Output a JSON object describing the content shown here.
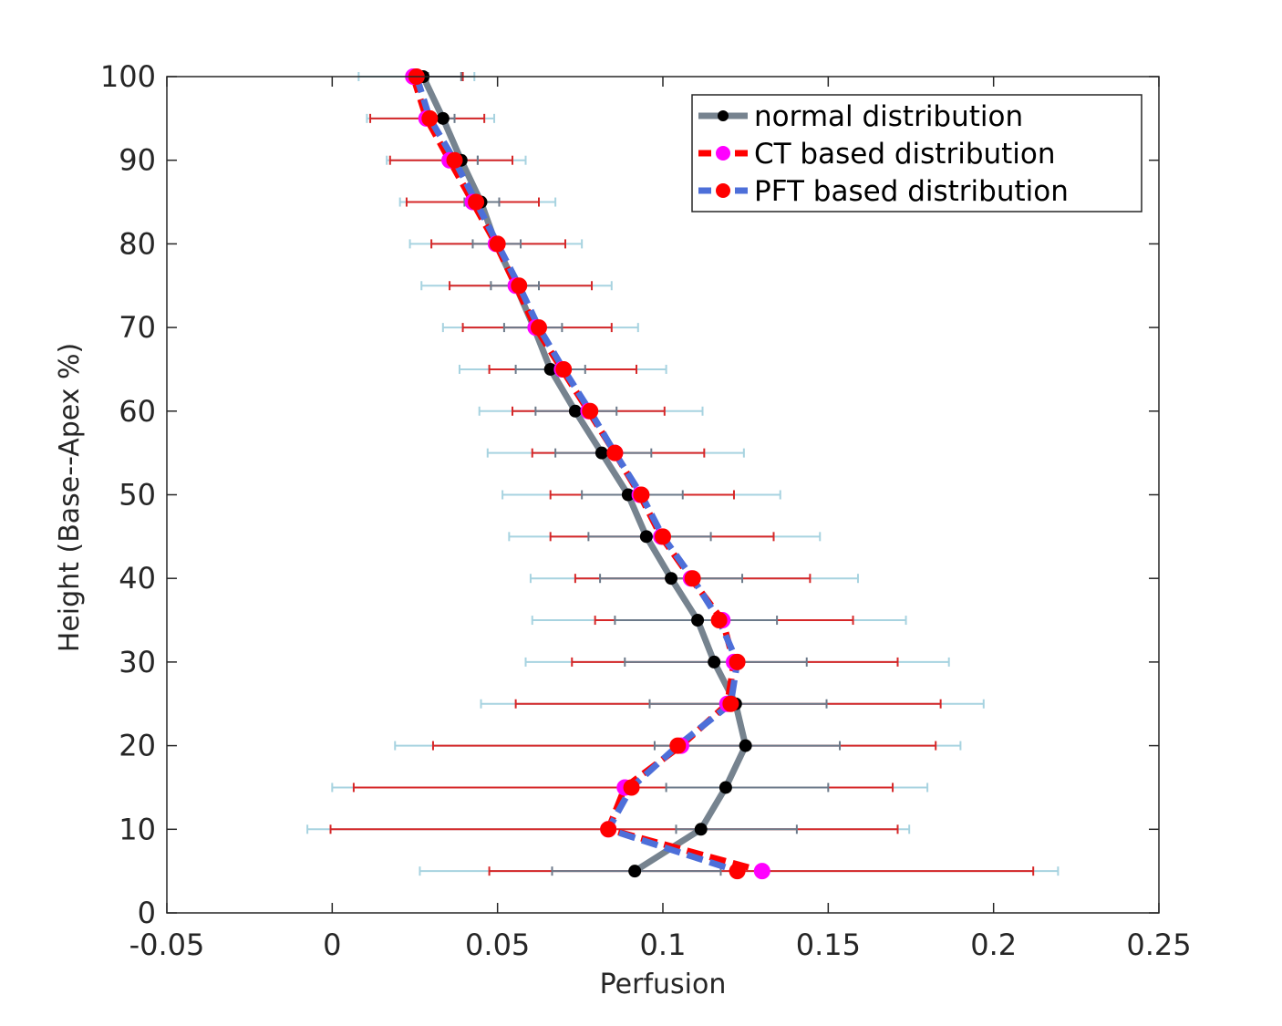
{
  "chart_data": {
    "type": "line",
    "title": "",
    "xlabel": "Perfusion",
    "ylabel": "Height (Base--Apex %)",
    "xlim": [
      -0.05,
      0.25
    ],
    "ylim": [
      0,
      100
    ],
    "xticks": [
      -0.05,
      0,
      0.05,
      0.1,
      0.15,
      0.2,
      0.25
    ],
    "xtick_labels": [
      "-0.05",
      "0",
      "0.05",
      "0.1",
      "0.15",
      "0.2",
      "0.25"
    ],
    "yticks": [
      0,
      10,
      20,
      30,
      40,
      50,
      60,
      70,
      80,
      90,
      100
    ],
    "ytick_labels": [
      "0",
      "10",
      "20",
      "30",
      "40",
      "50",
      "60",
      "70",
      "80",
      "90",
      "100"
    ],
    "grid": false,
    "legend_position": "top-right",
    "heights": [
      100,
      95,
      90,
      85,
      80,
      75,
      70,
      65,
      60,
      55,
      50,
      45,
      40,
      35,
      30,
      25,
      20,
      15,
      10,
      5
    ],
    "series": [
      {
        "name": "normal distribution",
        "line_color": "#76838f",
        "marker_color": "#000000",
        "line_style": "solid",
        "x": [
          0.0275,
          0.0335,
          0.039,
          0.045,
          0.0495,
          0.0555,
          0.061,
          0.066,
          0.0735,
          0.0815,
          0.0895,
          0.095,
          0.1025,
          0.1105,
          0.1155,
          0.122,
          0.125,
          0.119,
          0.1115,
          0.0915
        ],
        "err_low": [
          0.008,
          0.0105,
          0.0165,
          0.0205,
          0.0235,
          0.027,
          0.0335,
          0.0385,
          0.0445,
          0.047,
          0.0515,
          0.0535,
          0.06,
          0.0605,
          0.0585,
          0.045,
          0.019,
          0.0,
          -0.0075,
          0.0265
        ],
        "err_high": [
          0.043,
          0.049,
          0.0585,
          0.0675,
          0.0755,
          0.0845,
          0.0925,
          0.101,
          0.112,
          0.1245,
          0.1355,
          0.1475,
          0.159,
          0.1735,
          0.1865,
          0.197,
          0.19,
          0.18,
          0.1745,
          0.2195
        ],
        "err_color": "#a7d3e0"
      },
      {
        "name": "CT based distribution",
        "line_color": "#ff0000",
        "marker_color": "#ff00ff",
        "line_style": "dashed",
        "x": [
          0.0245,
          0.0285,
          0.0355,
          0.0425,
          0.0495,
          0.0555,
          0.0615,
          0.0695,
          0.0775,
          0.0855,
          0.093,
          0.0995,
          0.1085,
          0.118,
          0.1215,
          0.1195,
          0.1055,
          0.0885,
          0.0835,
          0.13
        ],
        "err_low": [
          0.024,
          0.0115,
          0.0175,
          0.0225,
          0.03,
          0.0355,
          0.0395,
          0.0475,
          0.0545,
          0.0605,
          0.066,
          0.066,
          0.0735,
          0.0795,
          0.0725,
          0.0555,
          0.0305,
          0.0065,
          -0.0005,
          0.0475
        ],
        "err_high": [
          0.0395,
          0.046,
          0.0545,
          0.0625,
          0.0705,
          0.0785,
          0.0845,
          0.092,
          0.1005,
          0.1125,
          0.1215,
          0.1335,
          0.1445,
          0.1575,
          0.171,
          0.184,
          0.1825,
          0.1695,
          0.171,
          0.212
        ],
        "err_color": "#d62728"
      },
      {
        "name": "PFT based distribution",
        "line_color": "#4d6fd9",
        "marker_color": "#ff0000",
        "line_style": "dashed",
        "x": [
          0.0255,
          0.0295,
          0.037,
          0.0435,
          0.05,
          0.0565,
          0.0625,
          0.07,
          0.078,
          0.0855,
          0.0935,
          0.1,
          0.109,
          0.117,
          0.1225,
          0.1205,
          0.1045,
          0.0905,
          0.0835,
          0.1225
        ],
        "err_low": [
          0.029,
          0.0345,
          0.044,
          0.04,
          0.0425,
          0.048,
          0.052,
          0.0555,
          0.0615,
          0.0675,
          0.0755,
          0.0775,
          0.081,
          0.0855,
          0.0885,
          0.096,
          0.0975,
          0.101,
          0.104,
          0.0665
        ],
        "err_high": [
          0.039,
          0.037,
          0.044,
          0.0505,
          0.057,
          0.0625,
          0.0695,
          0.0765,
          0.086,
          0.0965,
          0.106,
          0.1145,
          0.124,
          0.1345,
          0.1435,
          0.1495,
          0.1535,
          0.15,
          0.1405,
          0.1175
        ],
        "err_color": "#6c7a8a"
      }
    ]
  }
}
